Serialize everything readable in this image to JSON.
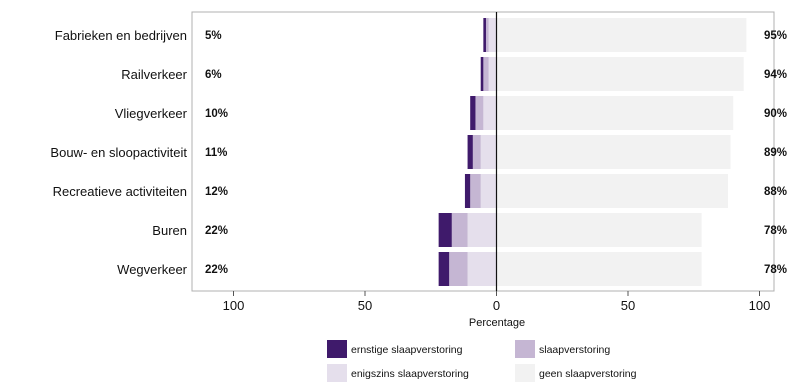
{
  "chart_data": {
    "type": "bar",
    "orientation": "horizontal-diverging",
    "xlabel": "Percentage",
    "xlim": [
      -100,
      100
    ],
    "x_ticks": [
      "100",
      "50",
      "0",
      "50",
      "100"
    ],
    "grid": false,
    "legend_placement": "bottom",
    "categories": [
      "Fabrieken en bedrijven",
      "Railverkeer",
      "Vliegverkeer",
      "Bouw- en sloopactiviteit",
      "Recreatieve activiteiten",
      "Buren",
      "Wegverkeer"
    ],
    "left_labels": [
      "5%",
      "6%",
      "10%",
      "11%",
      "12%",
      "22%",
      "22%"
    ],
    "right_labels": [
      "95%",
      "94%",
      "90%",
      "89%",
      "88%",
      "78%",
      "78%"
    ],
    "series": [
      {
        "name": "ernstige slaapverstoring",
        "color": "#3f1a6b",
        "side": "left",
        "values": [
          1,
          1,
          2,
          2,
          2,
          5,
          4
        ]
      },
      {
        "name": "slaapverstoring",
        "color": "#c5b6d3",
        "side": "left",
        "values": [
          1,
          2,
          3,
          3,
          4,
          6,
          7
        ]
      },
      {
        "name": "enigszins slaapverstoring",
        "color": "#e5dfec",
        "side": "left",
        "values": [
          3,
          3,
          5,
          6,
          6,
          11,
          11
        ]
      },
      {
        "name": "geen slaapverstoring",
        "color": "#f2f2f2",
        "side": "right",
        "values": [
          95,
          94,
          90,
          89,
          88,
          78,
          78
        ]
      }
    ]
  }
}
